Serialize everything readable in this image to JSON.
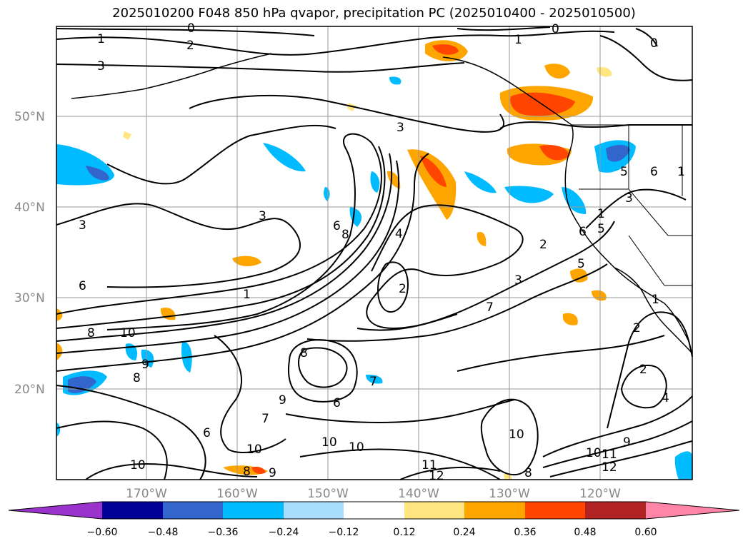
{
  "title": "2025010200 F048 850 hPa qvapor, precipitation PC (2025010400 - 2025010500)",
  "axes": {
    "lat_labels": [
      "50°N",
      "40°N",
      "30°N",
      "20°N"
    ],
    "lon_labels": [
      "170°W",
      "160°W",
      "150°W",
      "140°W",
      "130°W",
      "120°W"
    ]
  },
  "colorbar": {
    "colors": [
      "#9933cc",
      "#000099",
      "#3366cc",
      "#00bbff",
      "#aadeff",
      "#ffffff",
      "#ffe680",
      "#ffa500",
      "#ff4500",
      "#b22222",
      "#ff85a8"
    ],
    "tick_labels": [
      "−0.60",
      "−0.48",
      "−0.36",
      "−0.24",
      "−0.12",
      "0.12",
      "0.24",
      "0.36",
      "0.48",
      "0.60"
    ]
  },
  "contour_labels": [
    "0",
    "1",
    "2",
    "3",
    "1",
    "0",
    "0",
    "3",
    "3",
    "3",
    "3",
    "6",
    "8",
    "4",
    "2",
    "2",
    "3",
    "6",
    "7",
    "1",
    "10",
    "8",
    "9",
    "8",
    "6",
    "8",
    "7",
    "9",
    "7",
    "10",
    "10",
    "10",
    "11",
    "12",
    "10",
    "8",
    "11",
    "10",
    "9",
    "12",
    "2",
    "2",
    "1",
    "5",
    "5",
    "6",
    "1",
    "6",
    "1",
    "10",
    "8",
    "9",
    "6",
    "4",
    "5"
  ],
  "icons": {
    "coastline": "coastline-outline",
    "borders": "state-border-lines"
  }
}
